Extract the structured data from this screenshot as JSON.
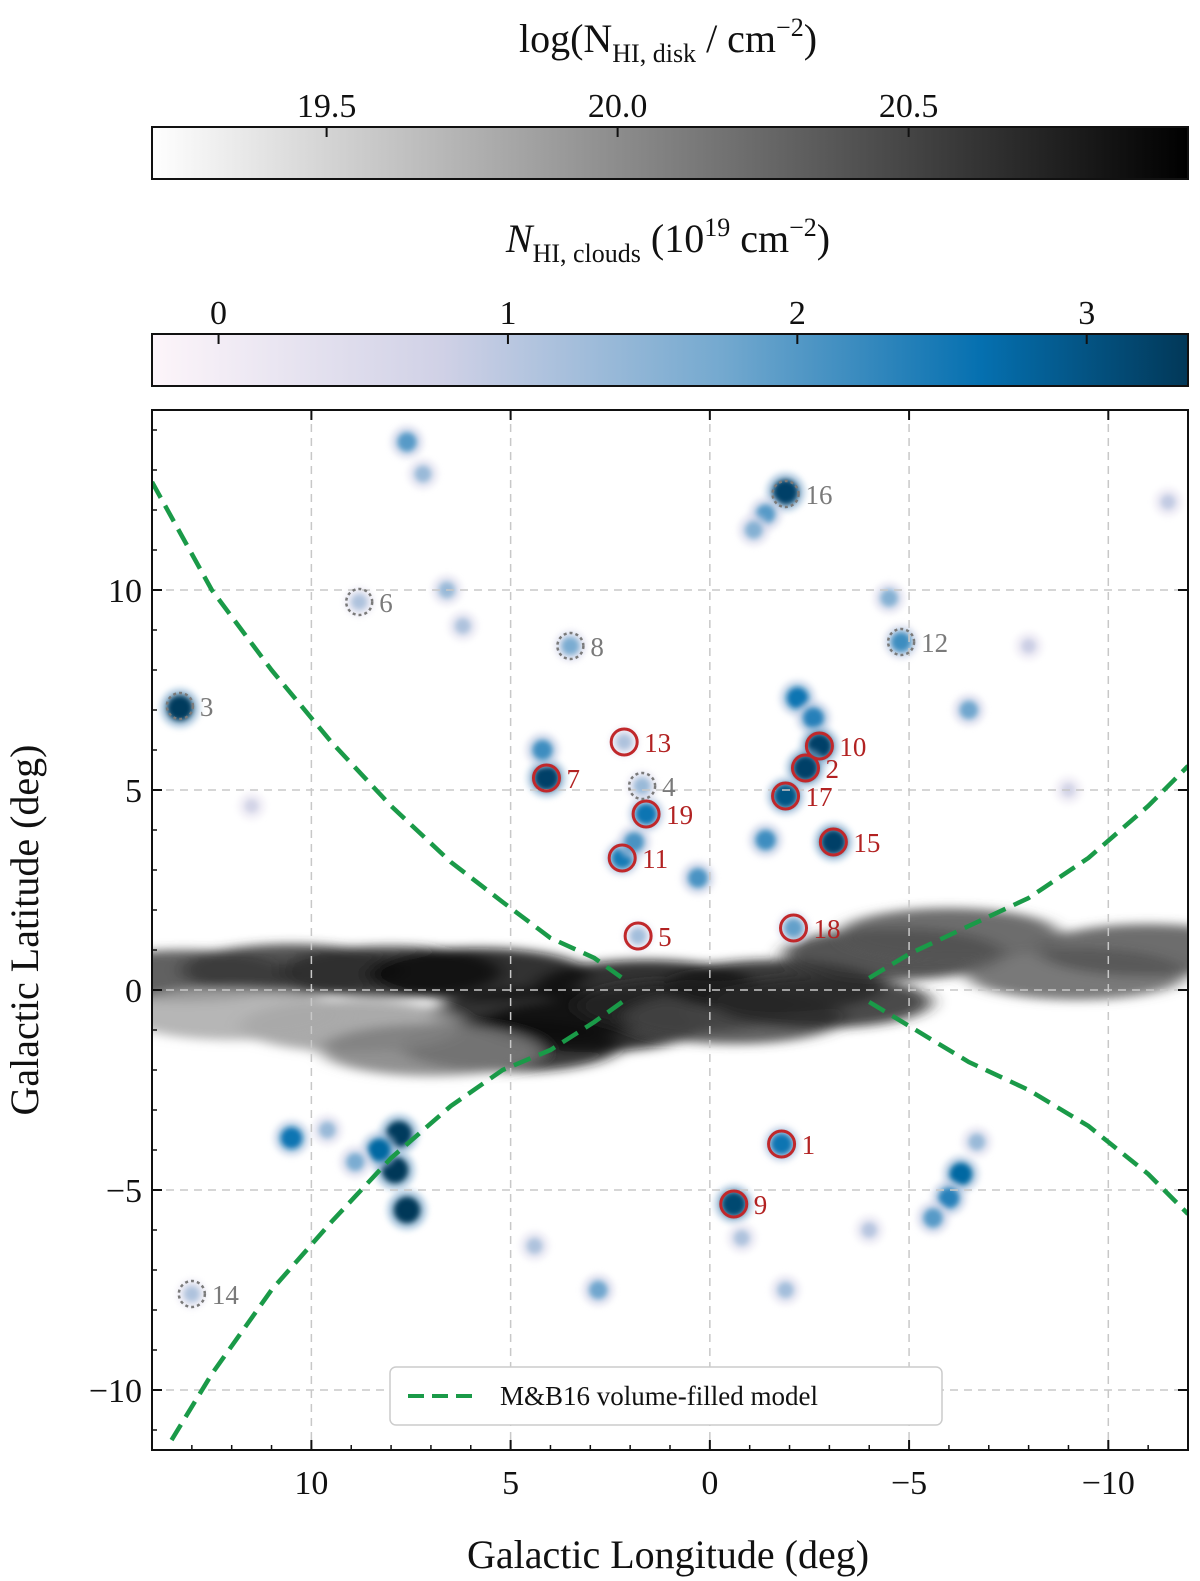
{
  "chart_data": {
    "type": "heatmap",
    "xlabel": "Galactic Longitude (deg)",
    "ylabel": "Galactic Latitude (deg)",
    "xlim": [
      14,
      -12
    ],
    "ylim": [
      -11.5,
      14.5
    ],
    "x_ticks": [
      10,
      5,
      0,
      -5,
      -10
    ],
    "x_tick_labels": [
      "10",
      "5",
      "0",
      "−5",
      "−10"
    ],
    "y_ticks": [
      10,
      5,
      0,
      -5,
      -10
    ],
    "y_tick_labels": [
      "10",
      "5",
      "0",
      "−5",
      "−10"
    ],
    "grid": true,
    "colorbar_disk": {
      "label_main": "log(N",
      "label_sub": "HI, disk",
      "label_tail": " / cm",
      "label_sup": "−2",
      "label_close": ")",
      "range": [
        19.2,
        20.98
      ],
      "ticks": [
        19.5,
        20.0,
        20.5
      ],
      "tick_labels": [
        "19.5",
        "20.0",
        "20.5"
      ],
      "colors": [
        "#ffffff",
        "#000000"
      ]
    },
    "colorbar_clouds": {
      "label_main": "N",
      "label_sub": "HI, clouds",
      "label_tail": " (10",
      "label_sup": "19",
      "label_unit": " cm",
      "label_sup2": "−2",
      "label_close": ")",
      "range": [
        -0.23,
        3.35
      ],
      "ticks": [
        0,
        1,
        2,
        3
      ],
      "tick_labels": [
        "0",
        "1",
        "2",
        "3"
      ],
      "colors": [
        "#fdf5fa",
        "#d0d1e6",
        "#74a9cf",
        "#0570b0",
        "#023858"
      ]
    },
    "legend": {
      "label": "M&B16 volume-filled model",
      "color": "#1a9a48",
      "position": "bottom-center"
    },
    "model_curves": [
      {
        "x": [
          14.0,
          12.5,
          11,
          9.5,
          8,
          6.5,
          5.2,
          4,
          2.9,
          2.2
        ],
        "y": [
          12.7,
          10.0,
          8.0,
          6.2,
          4.6,
          3.2,
          2.2,
          1.3,
          0.8,
          0.3
        ]
      },
      {
        "x": [
          2.2,
          2.9,
          4,
          5.2,
          6.5,
          8,
          9.5,
          11,
          12.5,
          13.6
        ],
        "y": [
          -0.3,
          -0.8,
          -1.5,
          -2.0,
          -2.9,
          -4.2,
          -5.8,
          -7.5,
          -9.6,
          -11.4
        ]
      },
      {
        "x": [
          -4.0,
          -5,
          -6.5,
          -8,
          -9.5,
          -11,
          -12.0
        ],
        "y": [
          0.3,
          0.9,
          1.6,
          2.3,
          3.3,
          4.6,
          5.6
        ]
      },
      {
        "x": [
          -4.0,
          -5,
          -6.5,
          -8,
          -9.5,
          -11,
          -12.0
        ],
        "y": [
          -0.3,
          -0.9,
          -1.8,
          -2.5,
          -3.4,
          -4.6,
          -5.6
        ]
      }
    ],
    "clouds_selected": [
      {
        "id": "1",
        "l": -1.8,
        "b": -3.85
      },
      {
        "id": "2",
        "l": -2.4,
        "b": 5.55
      },
      {
        "id": "5",
        "l": 1.8,
        "b": 1.35
      },
      {
        "id": "7",
        "l": 4.1,
        "b": 5.3
      },
      {
        "id": "9",
        "l": -0.6,
        "b": -5.35
      },
      {
        "id": "10",
        "l": -2.75,
        "b": 6.1
      },
      {
        "id": "11",
        "l": 2.2,
        "b": 3.3
      },
      {
        "id": "13",
        "l": 2.15,
        "b": 6.2
      },
      {
        "id": "15",
        "l": -3.1,
        "b": 3.7
      },
      {
        "id": "17",
        "l": -1.9,
        "b": 4.85
      },
      {
        "id": "18",
        "l": -2.1,
        "b": 1.55
      },
      {
        "id": "19",
        "l": 1.6,
        "b": 4.4
      }
    ],
    "clouds_other": [
      {
        "id": "3",
        "l": 13.3,
        "b": 7.1
      },
      {
        "id": "4",
        "l": 1.7,
        "b": 5.1
      },
      {
        "id": "6",
        "l": 8.8,
        "b": 9.7
      },
      {
        "id": "8",
        "l": 3.5,
        "b": 8.6
      },
      {
        "id": "12",
        "l": -4.8,
        "b": 8.7
      },
      {
        "id": "14",
        "l": 13.0,
        "b": -7.6
      },
      {
        "id": "16",
        "l": -1.9,
        "b": 12.4
      }
    ],
    "cloud_blobs": [
      {
        "l": 13.3,
        "b": 7.05,
        "value": 3.3
      },
      {
        "l": -1.9,
        "b": 12.45,
        "value": 3.2
      },
      {
        "l": -1.4,
        "b": 11.9,
        "value": 1.8
      },
      {
        "l": -1.1,
        "b": 11.5,
        "value": 1.4
      },
      {
        "l": -2.2,
        "b": 7.3,
        "value": 2.4
      },
      {
        "l": -2.6,
        "b": 6.8,
        "value": 2.2
      },
      {
        "l": -2.75,
        "b": 6.1,
        "value": 3.2
      },
      {
        "l": -2.4,
        "b": 5.55,
        "value": 3.2
      },
      {
        "l": -1.9,
        "b": 4.85,
        "value": 2.9
      },
      {
        "l": -3.1,
        "b": 3.7,
        "value": 3.2
      },
      {
        "l": -1.4,
        "b": 3.75,
        "value": 2.0
      },
      {
        "l": -2.1,
        "b": 1.55,
        "value": 1.7
      },
      {
        "l": 4.1,
        "b": 5.3,
        "value": 3.2
      },
      {
        "l": 4.2,
        "b": 6.0,
        "value": 2.0
      },
      {
        "l": 1.6,
        "b": 4.4,
        "value": 2.4
      },
      {
        "l": 2.2,
        "b": 3.3,
        "value": 2.3
      },
      {
        "l": 1.9,
        "b": 3.7,
        "value": 1.9
      },
      {
        "l": 1.7,
        "b": 5.1,
        "value": 1.2
      },
      {
        "l": 2.15,
        "b": 6.2,
        "value": 1.0
      },
      {
        "l": 0.3,
        "b": 2.8,
        "value": 1.9
      },
      {
        "l": 1.8,
        "b": 1.35,
        "value": 1.1
      },
      {
        "l": 3.5,
        "b": 8.6,
        "value": 1.5
      },
      {
        "l": 8.8,
        "b": 9.7,
        "value": 1.0
      },
      {
        "l": -4.8,
        "b": 8.7,
        "value": 2.0
      },
      {
        "l": -4.5,
        "b": 9.8,
        "value": 1.4
      },
      {
        "l": -6.5,
        "b": 7.0,
        "value": 1.6
      },
      {
        "l": 7.6,
        "b": 13.7,
        "value": 1.8
      },
      {
        "l": 7.2,
        "b": 12.9,
        "value": 1.2
      },
      {
        "l": 6.6,
        "b": 10.0,
        "value": 1.2
      },
      {
        "l": 6.2,
        "b": 9.1,
        "value": 1.0
      },
      {
        "l": -1.8,
        "b": -3.85,
        "value": 2.4
      },
      {
        "l": -0.6,
        "b": -5.35,
        "value": 3.1
      },
      {
        "l": -0.8,
        "b": -6.2,
        "value": 1.0
      },
      {
        "l": 7.9,
        "b": -4.5,
        "value": 3.4
      },
      {
        "l": 7.8,
        "b": -3.6,
        "value": 3.3
      },
      {
        "l": 7.6,
        "b": -5.5,
        "value": 3.4
      },
      {
        "l": 8.3,
        "b": -4.0,
        "value": 2.6
      },
      {
        "l": 8.9,
        "b": -4.3,
        "value": 1.5
      },
      {
        "l": 10.5,
        "b": -3.7,
        "value": 2.4
      },
      {
        "l": 9.6,
        "b": -3.5,
        "value": 1.2
      },
      {
        "l": -6.3,
        "b": -4.6,
        "value": 2.6
      },
      {
        "l": -6.0,
        "b": -5.2,
        "value": 2.2
      },
      {
        "l": -5.6,
        "b": -5.7,
        "value": 1.8
      },
      {
        "l": -6.7,
        "b": -3.8,
        "value": 1.2
      },
      {
        "l": 2.8,
        "b": -7.5,
        "value": 1.6
      },
      {
        "l": 4.4,
        "b": -6.4,
        "value": 1.0
      },
      {
        "l": -1.9,
        "b": -7.5,
        "value": 1.1
      },
      {
        "l": -4.0,
        "b": -6.0,
        "value": 0.9
      },
      {
        "l": 13.0,
        "b": -7.6,
        "value": 1.0
      },
      {
        "l": -11.5,
        "b": 12.2,
        "value": 0.8
      },
      {
        "l": -8.0,
        "b": 8.6,
        "value": 0.7
      },
      {
        "l": -9.0,
        "b": 5.0,
        "value": 0.6
      },
      {
        "l": 11.5,
        "b": 4.6,
        "value": 0.6
      }
    ],
    "disk_blobs": [
      {
        "l": 13.2,
        "b": 0.35,
        "value": 20.5
      },
      {
        "l": 10.5,
        "b": 0.5,
        "value": 20.6
      },
      {
        "l": 8.0,
        "b": 0.45,
        "value": 20.7
      },
      {
        "l": 5.8,
        "b": 0.4,
        "value": 20.9
      },
      {
        "l": 4.2,
        "b": -0.6,
        "value": 20.9
      },
      {
        "l": 5.0,
        "b": -1.4,
        "value": 20.8
      },
      {
        "l": 3.0,
        "b": -0.9,
        "value": 20.9
      },
      {
        "l": 1.6,
        "b": 0.1,
        "value": 20.9
      },
      {
        "l": 0.6,
        "b": -0.4,
        "value": 20.7
      },
      {
        "l": -0.6,
        "b": -0.7,
        "value": 20.5
      },
      {
        "l": -1.6,
        "b": 0.1,
        "value": 20.8
      },
      {
        "l": -2.8,
        "b": -0.3,
        "value": 20.7
      },
      {
        "l": -4.6,
        "b": 0.9,
        "value": 20.6
      },
      {
        "l": -6.0,
        "b": 1.4,
        "value": 20.4
      },
      {
        "l": -9.2,
        "b": 0.4,
        "value": 20.3
      },
      {
        "l": -11.0,
        "b": 1.0,
        "value": 20.4
      },
      {
        "l": 9.0,
        "b": -0.9,
        "value": 19.9
      },
      {
        "l": 12.0,
        "b": -0.6,
        "value": 19.8
      },
      {
        "l": 7.0,
        "b": -1.5,
        "value": 20.1
      }
    ]
  }
}
